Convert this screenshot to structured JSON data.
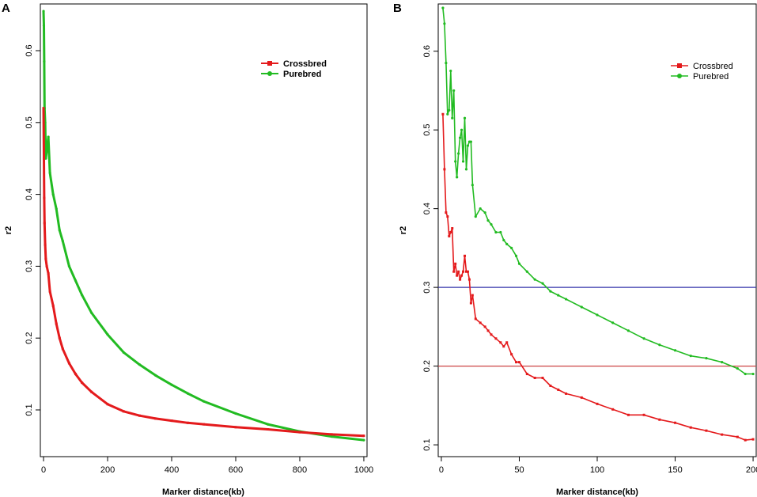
{
  "colors": {
    "crossbred": "#e41a1c",
    "purebred": "#22bb22",
    "hline_blue": "#3333aa",
    "hline_red": "#cc4444"
  },
  "chart_data": [
    {
      "type": "line",
      "panel_label": "A",
      "xlabel": "Marker distance(kb)",
      "ylabel": "r2",
      "xlim": [
        -10,
        1010
      ],
      "ylim": [
        0.035,
        0.665
      ],
      "xticks": [
        "0",
        "200",
        "400",
        "600",
        "800",
        "1000"
      ],
      "yticks": [
        "0.1",
        "0.2",
        "0.3",
        "0.4",
        "0.5",
        "0.6"
      ],
      "legend": [
        "Crossbred",
        "Purebred"
      ],
      "legend_position": "top-right",
      "series": [
        {
          "name": "Crossbred",
          "color_key": "crossbred",
          "x": [
            0,
            1,
            2,
            3,
            5,
            7,
            10,
            15,
            20,
            30,
            40,
            50,
            60,
            80,
            100,
            120,
            150,
            200,
            250,
            300,
            350,
            400,
            450,
            500,
            600,
            700,
            800,
            900,
            1000
          ],
          "y": [
            0.52,
            0.45,
            0.395,
            0.36,
            0.33,
            0.31,
            0.3,
            0.29,
            0.265,
            0.245,
            0.22,
            0.2,
            0.185,
            0.165,
            0.15,
            0.138,
            0.125,
            0.108,
            0.098,
            0.092,
            0.088,
            0.085,
            0.082,
            0.08,
            0.076,
            0.073,
            0.069,
            0.066,
            0.064
          ]
        },
        {
          "name": "Purebred",
          "color_key": "purebred",
          "x": [
            0,
            1,
            2,
            3,
            5,
            7,
            10,
            15,
            20,
            30,
            40,
            50,
            60,
            80,
            100,
            120,
            150,
            200,
            250,
            300,
            350,
            400,
            450,
            500,
            600,
            700,
            800,
            900,
            1000
          ],
          "y": [
            0.655,
            0.635,
            0.585,
            0.52,
            0.5,
            0.45,
            0.46,
            0.48,
            0.43,
            0.4,
            0.38,
            0.35,
            0.335,
            0.3,
            0.28,
            0.26,
            0.235,
            0.205,
            0.18,
            0.163,
            0.148,
            0.135,
            0.123,
            0.112,
            0.095,
            0.08,
            0.07,
            0.063,
            0.058
          ]
        }
      ]
    },
    {
      "type": "line",
      "panel_label": "B",
      "xlabel": "Marker distance(kb)",
      "ylabel": "r2",
      "xlim": [
        -2,
        202
      ],
      "ylim": [
        0.085,
        0.66
      ],
      "xticks": [
        "0",
        "50",
        "100",
        "150",
        "200"
      ],
      "yticks": [
        "0.1",
        "0.2",
        "0.3",
        "0.4",
        "0.5",
        "0.6"
      ],
      "hlines": [
        {
          "y": 0.3,
          "color_key": "hline_blue"
        },
        {
          "y": 0.2,
          "color_key": "hline_red"
        }
      ],
      "legend": [
        "Crossbred",
        "Purebred"
      ],
      "legend_position": "top-right",
      "series": [
        {
          "name": "Crossbred",
          "color_key": "crossbred",
          "x": [
            1,
            2,
            3,
            4,
            5,
            6,
            7,
            8,
            9,
            10,
            11,
            12,
            13,
            14,
            15,
            16,
            17,
            18,
            19,
            20,
            22,
            25,
            28,
            30,
            32,
            35,
            38,
            40,
            42,
            45,
            48,
            50,
            55,
            60,
            65,
            70,
            75,
            80,
            90,
            100,
            110,
            120,
            130,
            140,
            150,
            160,
            170,
            180,
            190,
            195,
            200
          ],
          "y": [
            0.52,
            0.45,
            0.395,
            0.39,
            0.365,
            0.37,
            0.375,
            0.32,
            0.33,
            0.315,
            0.32,
            0.31,
            0.315,
            0.32,
            0.34,
            0.32,
            0.32,
            0.31,
            0.28,
            0.29,
            0.26,
            0.255,
            0.25,
            0.245,
            0.24,
            0.235,
            0.23,
            0.225,
            0.23,
            0.215,
            0.205,
            0.205,
            0.19,
            0.185,
            0.185,
            0.175,
            0.17,
            0.165,
            0.16,
            0.152,
            0.145,
            0.138,
            0.138,
            0.132,
            0.128,
            0.122,
            0.118,
            0.113,
            0.11,
            0.106,
            0.107
          ]
        },
        {
          "name": "Purebred",
          "color_key": "purebred",
          "x": [
            1,
            2,
            3,
            4,
            5,
            6,
            7,
            8,
            9,
            10,
            11,
            12,
            13,
            14,
            15,
            16,
            17,
            18,
            19,
            20,
            22,
            25,
            28,
            30,
            32,
            35,
            38,
            40,
            42,
            45,
            48,
            50,
            55,
            60,
            65,
            70,
            75,
            80,
            90,
            100,
            110,
            120,
            130,
            140,
            150,
            160,
            170,
            180,
            190,
            195,
            200
          ],
          "y": [
            0.655,
            0.635,
            0.585,
            0.52,
            0.525,
            0.575,
            0.515,
            0.55,
            0.46,
            0.44,
            0.47,
            0.49,
            0.5,
            0.46,
            0.515,
            0.45,
            0.48,
            0.485,
            0.485,
            0.43,
            0.39,
            0.4,
            0.395,
            0.385,
            0.38,
            0.37,
            0.37,
            0.36,
            0.355,
            0.35,
            0.34,
            0.33,
            0.32,
            0.31,
            0.305,
            0.295,
            0.29,
            0.285,
            0.275,
            0.265,
            0.255,
            0.245,
            0.235,
            0.227,
            0.22,
            0.213,
            0.21,
            0.205,
            0.197,
            0.19,
            0.19
          ]
        }
      ]
    }
  ]
}
